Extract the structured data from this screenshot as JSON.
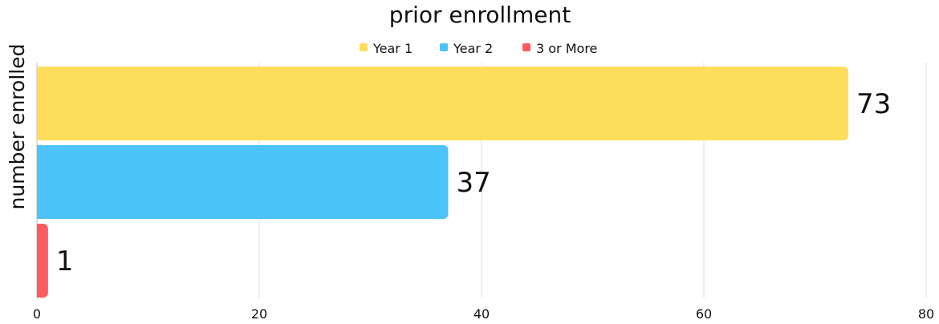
{
  "chart_data": {
    "type": "bar",
    "orientation": "horizontal",
    "title": "prior enrollment",
    "ylabel": "number enrolled",
    "xlabel": "",
    "xlim": [
      0,
      80
    ],
    "x_ticks": [
      0,
      20,
      40,
      60,
      80
    ],
    "grid": "vertical",
    "legend_position": "top-center",
    "series": [
      {
        "name": "Year 1",
        "value": 73,
        "color": "#FFDD5C"
      },
      {
        "name": "Year 2",
        "value": 37,
        "color": "#4CC3FA"
      },
      {
        "name": "3 or More",
        "value": 1,
        "color": "#FF5A5F"
      }
    ],
    "data_labels": [
      "73",
      "37",
      "1"
    ]
  }
}
